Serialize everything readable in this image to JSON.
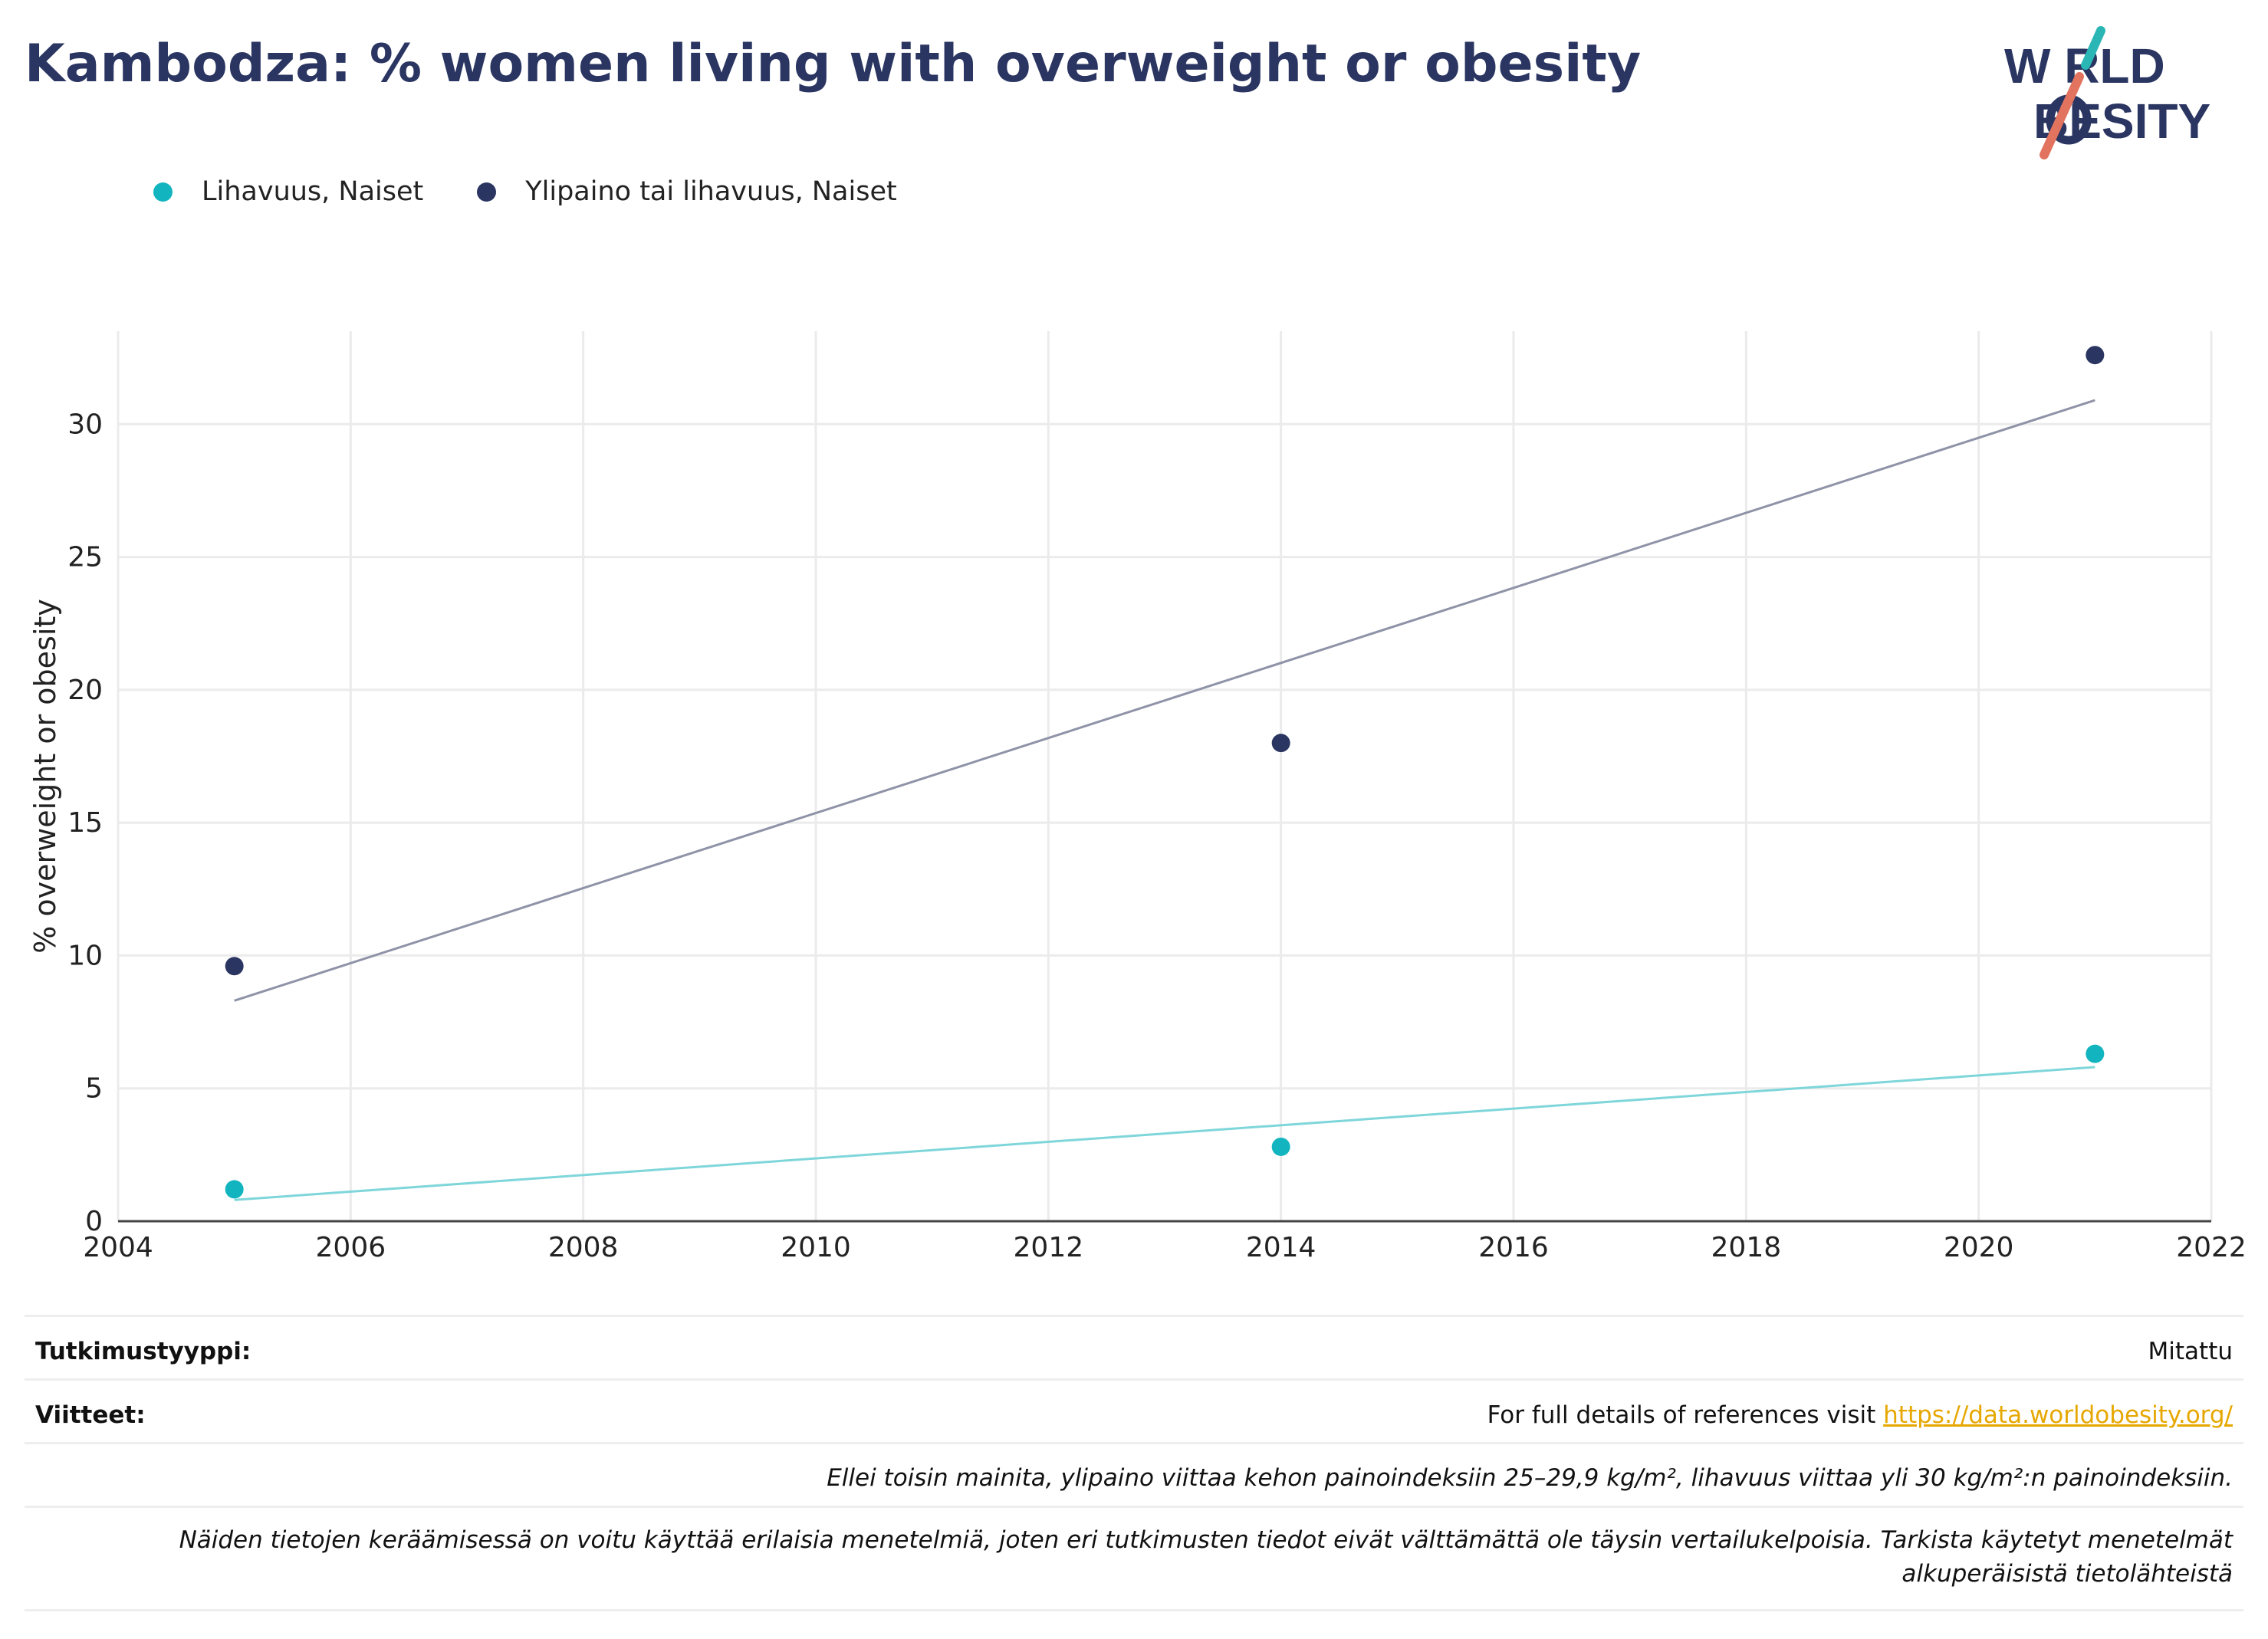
{
  "title": "Kambodza: % women living with overweight or obesity",
  "logo": {
    "line1": "W RLD",
    "line2": "BESITY",
    "wordmark": "WORLD OBESITY"
  },
  "colors": {
    "navy": "#2a3561",
    "teal": "#12b5bf",
    "teal_line": "#7fd6da",
    "navy_line": "#8f93a8",
    "coral": "#e2735f",
    "link": "#e6a700"
  },
  "chart_data": {
    "type": "scatter",
    "ylabel": "% overweight or obesity",
    "xlabel": "",
    "xlim": [
      2004,
      2022
    ],
    "ylim": [
      0,
      33.5
    ],
    "x_ticks": [
      2004,
      2006,
      2008,
      2010,
      2012,
      2014,
      2016,
      2018,
      2020,
      2022
    ],
    "y_ticks": [
      0,
      5,
      10,
      15,
      20,
      25,
      30
    ],
    "grid": true,
    "legend_position": "top-left",
    "series": [
      {
        "name": "Lihavuus, Naiset",
        "color": "#12b5bf",
        "points": [
          {
            "x": 2005,
            "y": 1.2
          },
          {
            "x": 2014,
            "y": 2.8
          },
          {
            "x": 2021,
            "y": 6.3
          }
        ],
        "trendline": [
          {
            "x": 2005,
            "y": 0.8
          },
          {
            "x": 2021,
            "y": 5.8
          }
        ]
      },
      {
        "name": "Ylipaino tai lihavuus, Naiset",
        "color": "#2a3561",
        "points": [
          {
            "x": 2005,
            "y": 9.6
          },
          {
            "x": 2014,
            "y": 18.0
          },
          {
            "x": 2021,
            "y": 32.6
          }
        ],
        "trendline": [
          {
            "x": 2005,
            "y": 8.3
          },
          {
            "x": 2021,
            "y": 30.9
          }
        ]
      }
    ]
  },
  "info": {
    "study_type_label": "Tutkimustyyppi:",
    "study_type_value": "Mitattu",
    "references_label": "Viitteet:",
    "references_text": "For full details of references visit ",
    "references_link": "https://data.worldobesity.org/",
    "note1": "Ellei toisin mainita, ylipaino viittaa kehon painoindeksiin 25–29,9 kg/m², lihavuus viittaa yli 30 kg/m²:n painoindeksiin.",
    "note2_line1": "Näiden tietojen keräämisessä on voitu käyttää erilaisia menetelmiä, joten eri tutkimusten tiedot eivät välttämättä ole täysin vertailukelpoisia. Tarkista käytetyt menetelmät",
    "note2_line2": "alkuperäisistä tietolähteistä"
  }
}
